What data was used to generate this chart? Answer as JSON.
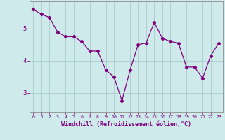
{
  "x": [
    0,
    1,
    2,
    3,
    4,
    5,
    6,
    7,
    8,
    9,
    10,
    11,
    12,
    13,
    14,
    15,
    16,
    17,
    18,
    19,
    20,
    21,
    22,
    23
  ],
  "y": [
    5.6,
    5.45,
    5.35,
    4.9,
    4.75,
    4.75,
    4.6,
    4.3,
    4.3,
    3.7,
    3.5,
    2.75,
    3.7,
    4.5,
    4.55,
    5.2,
    4.7,
    4.6,
    4.55,
    3.8,
    3.8,
    3.45,
    4.15,
    4.55
  ],
  "line_color": "#800080",
  "marker": "D",
  "marker_size": 2.2,
  "bg_color": "#ceeaea",
  "grid_color": "#aacccc",
  "xlabel": "Windchill (Refroidissement éolien,°C)",
  "xlabel_color": "#800080",
  "tick_color": "#800080",
  "yticks": [
    3,
    4,
    5
  ],
  "xticks": [
    0,
    1,
    2,
    3,
    4,
    5,
    6,
    7,
    8,
    9,
    10,
    11,
    12,
    13,
    14,
    15,
    16,
    17,
    18,
    19,
    20,
    21,
    22,
    23
  ],
  "ylim": [
    2.4,
    5.85
  ],
  "xlim": [
    -0.5,
    23.5
  ],
  "xlabel_fontsize": 6.0,
  "xtick_fontsize": 4.8,
  "ytick_fontsize": 6.5
}
